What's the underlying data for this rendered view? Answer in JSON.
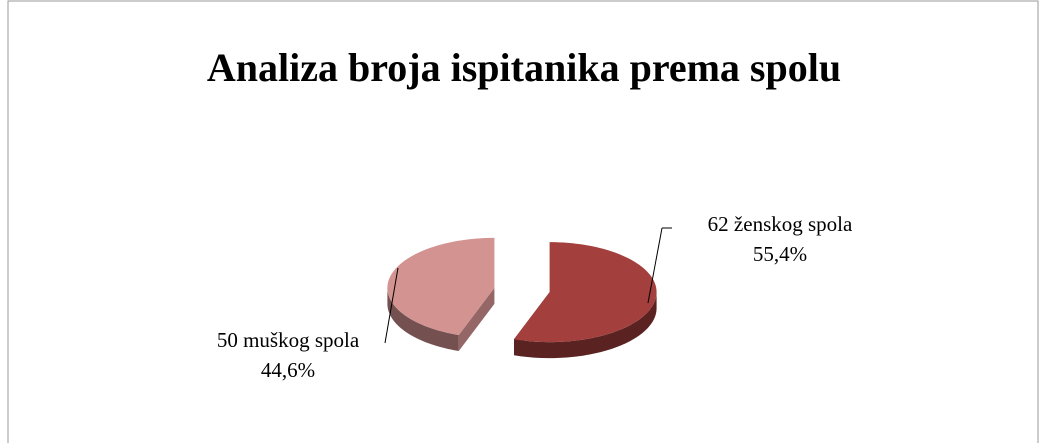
{
  "chart_data": {
    "type": "pie",
    "title": "Analiza broja ispitanika prema spolu",
    "categories": [
      "62 ženskog spola",
      "50 muškog spola"
    ],
    "values": [
      55.4,
      44.6
    ],
    "value_labels": [
      "55,4%",
      "44,6%"
    ],
    "colors": [
      "#a3403e",
      "#d39391"
    ]
  }
}
